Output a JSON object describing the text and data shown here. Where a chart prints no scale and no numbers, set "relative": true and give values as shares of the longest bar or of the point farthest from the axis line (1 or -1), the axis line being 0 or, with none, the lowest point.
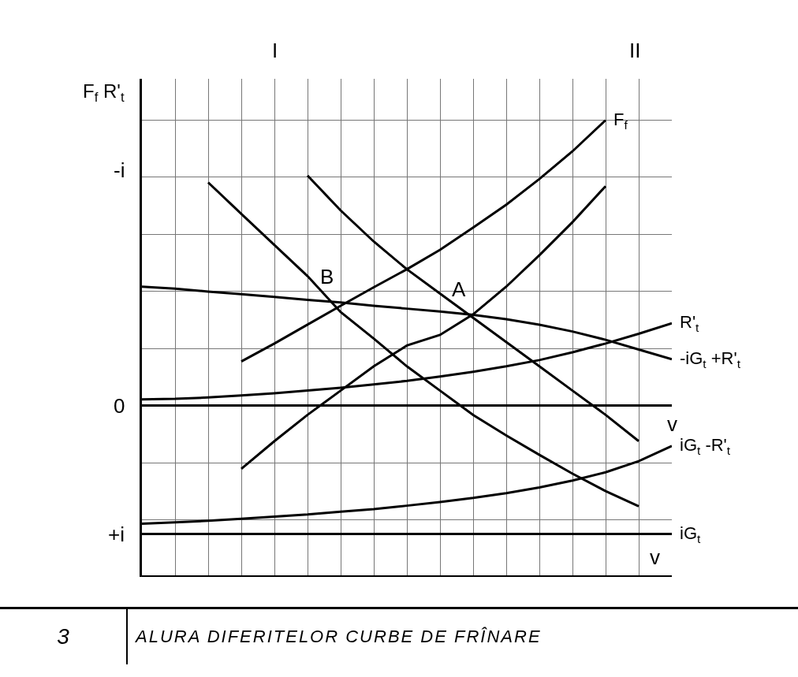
{
  "chart_data": {
    "type": "line",
    "title": "ALURA DIFERITELOR CURBE DE FRÎNARE",
    "subtitle": "3",
    "xlabel": "v",
    "ylabel": "F$_{f}$ R'$_{t}$",
    "relative": true,
    "grid": true,
    "legend": false,
    "line_style": "solid",
    "categories": [
      null,
      null,
      null,
      null,
      null,
      null,
      null,
      null,
      null,
      null,
      null,
      null,
      null,
      null,
      null,
      null,
      null
    ],
    "annotations": [
      "-i",
      "0",
      "+i",
      "v",
      "I",
      "II",
      "B",
      "A"
    ],
    "series": [
      {
        "name": "F$_{f}$",
        "color": "#000000",
        "values": [
          null,
          null,
          null,
          0.155,
          0.218,
          0.284,
          0.35,
          0.415,
          0.478,
          0.546,
          0.624,
          0.704,
          0.794,
          0.891,
          1,
          null,
          null
        ]
      },
      {
        "color": "#000000",
        "values": [
          null,
          null,
          null,
          -0.221,
          -0.124,
          -0.032,
          0.053,
          0.138,
          0.211,
          0.248,
          0.32,
          0.417,
          0.527,
          0.643,
          0.769,
          null,
          null
        ]
      },
      {
        "color": "#000000",
        "values": [
          null,
          null,
          0.782,
          0.672,
          0.563,
          0.454,
          0.328,
          0.235,
          0.138,
          0.053,
          -0.032,
          -0.104,
          -0.172,
          -0.238,
          -0.299,
          -0.352,
          null
        ]
      },
      {
        "color": "#000000",
        "values": [
          null,
          null,
          null,
          null,
          null,
          0.806,
          0.684,
          0.575,
          0.478,
          0.393,
          0.308,
          0.223,
          0.138,
          0.053,
          -0.032,
          -0.124,
          null
        ]
      },
      {
        "name": "-iG$_{t}$ +R'$_{t}$",
        "color": "#000000",
        "values": [
          0.417,
          0.41,
          0.4,
          0.391,
          0.381,
          0.371,
          0.362,
          0.35,
          0.34,
          0.33,
          0.318,
          0.303,
          0.284,
          0.26,
          0.231,
          0.197,
          0.163
        ]
      },
      {
        "name": "R'$_{t}$",
        "color": "#000000",
        "values": [
          0.022,
          0.024,
          0.029,
          0.036,
          0.044,
          0.053,
          0.063,
          0.075,
          0.087,
          0.102,
          0.119,
          0.138,
          0.16,
          0.187,
          0.218,
          0.252,
          0.289
        ]
      },
      {
        "name": "iG$_{t}$ -R'$_{t}$",
        "color": "#000000",
        "values": [
          -0.413,
          -0.408,
          -0.403,
          -0.396,
          -0.388,
          -0.381,
          -0.371,
          -0.362,
          -0.35,
          -0.337,
          -0.323,
          -0.306,
          -0.286,
          -0.262,
          -0.233,
          -0.194,
          -0.141
        ]
      },
      {
        "name": "iG$_{t}$",
        "color": "#000000",
        "values": [
          -0.449,
          -0.449,
          -0.449,
          -0.449,
          -0.449,
          -0.449,
          -0.449,
          -0.449,
          -0.449,
          -0.449,
          -0.449,
          -0.449,
          -0.449,
          -0.449,
          -0.449,
          -0.449,
          -0.449
        ]
      }
    ]
  }
}
